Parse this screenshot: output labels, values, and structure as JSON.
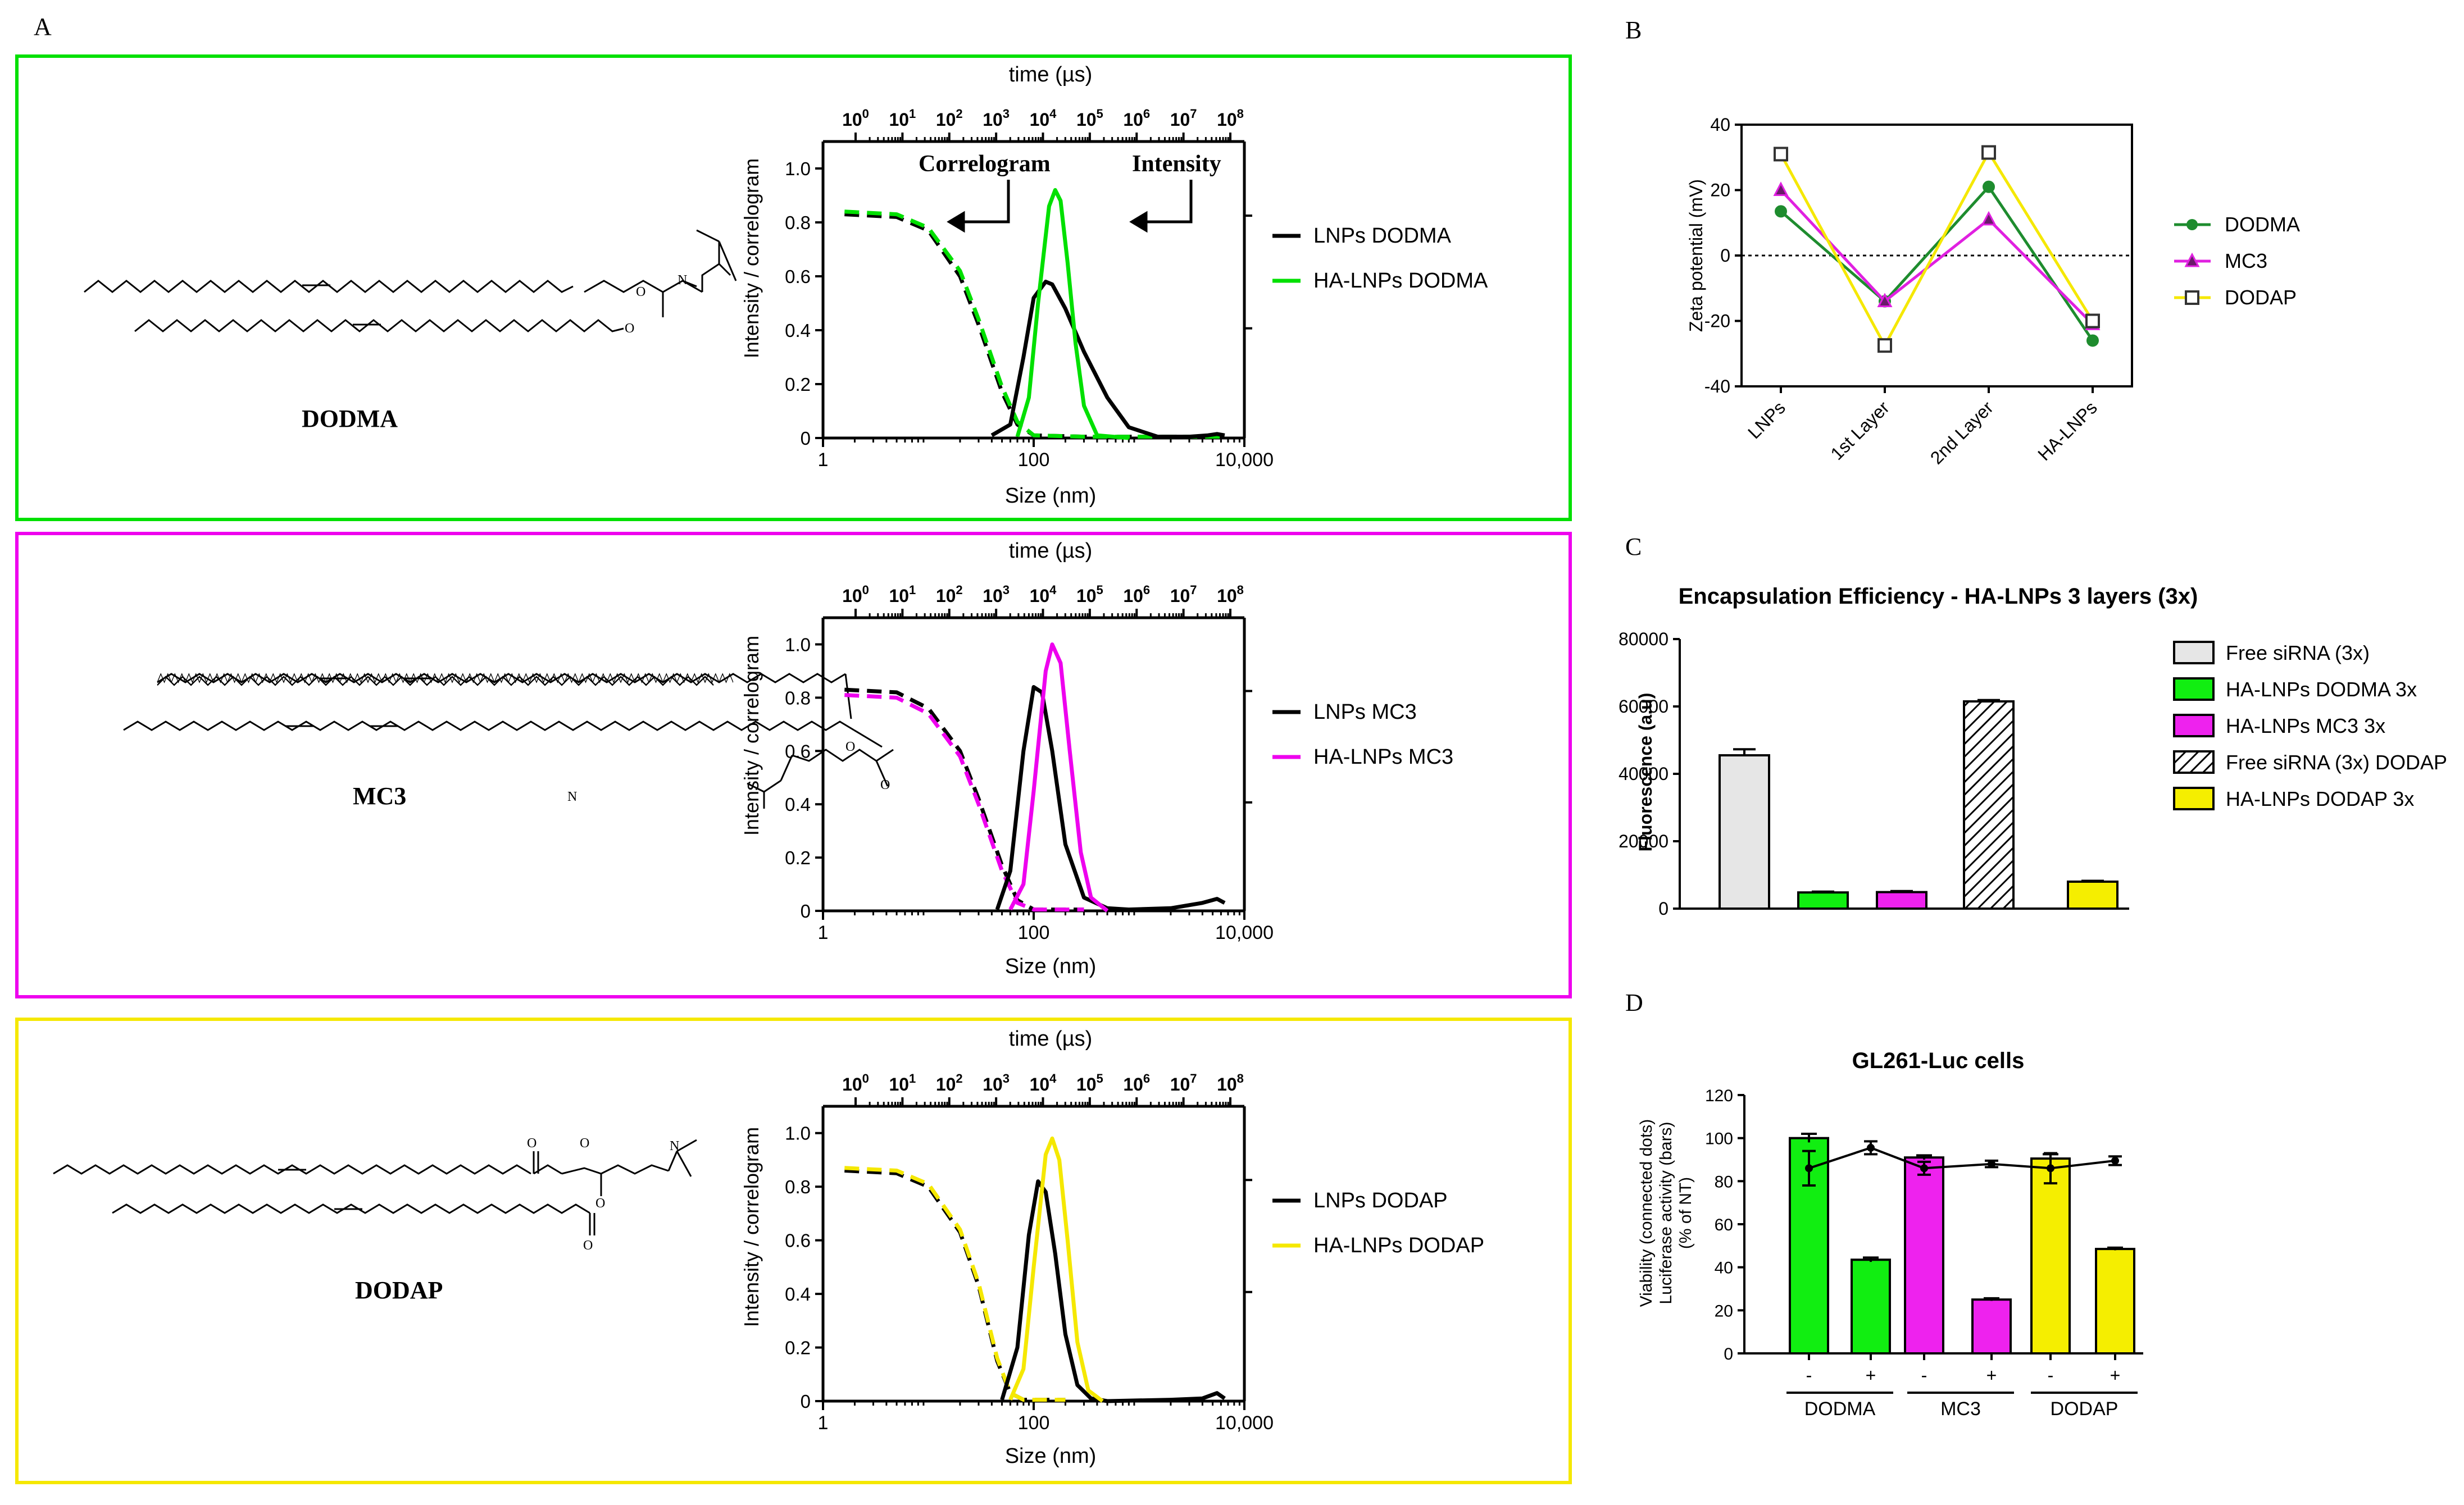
{
  "panel_letters": {
    "A": "A",
    "B": "B",
    "C": "C",
    "D": "D"
  },
  "chart_data": [
    {
      "id": "A1",
      "type": "line",
      "panel": "A",
      "title": "",
      "box_color": "#00e000",
      "structure_label": "DODMA",
      "x_axis_label": "Size (nm)",
      "x_ticks": [
        "1",
        "100",
        "10,000"
      ],
      "top_axis_label": "time (µs)",
      "top_tick_exponents": [
        "0",
        "1",
        "2",
        "3",
        "4",
        "5",
        "6",
        "7",
        "8"
      ],
      "y_axis_label": "Intensity / correlogram",
      "ylim": [
        0,
        1.1
      ],
      "y_ticks": [
        "0",
        "0.2",
        "0.4",
        "0.6",
        "0.8",
        "1.0"
      ],
      "annotations": {
        "correlogram": "Correlogram",
        "intensity": "Intensity"
      },
      "color_sample": "#00e000",
      "legend": [
        "LNPs DODMA",
        "HA-LNPs DODMA"
      ],
      "series": [
        {
          "name": "LNPs DODMA correlogram",
          "style": "dashed",
          "color": "#000000",
          "x": [
            1.6,
            5,
            10,
            20,
            30,
            50,
            70,
            100,
            300,
            1000,
            5000,
            6500
          ],
          "y": [
            0.83,
            0.82,
            0.77,
            0.6,
            0.42,
            0.17,
            0.05,
            0.01,
            0.005,
            0.005,
            0.005,
            0.005
          ]
        },
        {
          "name": "HA-LNPs DODMA correlogram",
          "style": "dashed",
          "color": "#00e000",
          "x": [
            1.6,
            5,
            10,
            20,
            30,
            50,
            70,
            100,
            300,
            1000,
            5000,
            6500
          ],
          "y": [
            0.84,
            0.83,
            0.78,
            0.62,
            0.44,
            0.19,
            0.06,
            0.01,
            0.005,
            0.005,
            0.005,
            0.005
          ]
        },
        {
          "name": "LNPs DODMA",
          "style": "solid",
          "color": "#000000",
          "x": [
            40,
            60,
            80,
            100,
            130,
            150,
            200,
            300,
            500,
            800,
            1500,
            3000,
            4500,
            5500,
            6500
          ],
          "y": [
            0.01,
            0.05,
            0.3,
            0.52,
            0.58,
            0.57,
            0.48,
            0.32,
            0.15,
            0.04,
            0.005,
            0.005,
            0.01,
            0.015,
            0.01
          ]
        },
        {
          "name": "HA-LNPs DODMA",
          "style": "solid",
          "color": "#00e000",
          "x": [
            70,
            90,
            110,
            140,
            160,
            180,
            210,
            250,
            300,
            400,
            800
          ],
          "y": [
            0.005,
            0.15,
            0.5,
            0.86,
            0.92,
            0.88,
            0.65,
            0.35,
            0.12,
            0.01,
            0.0
          ]
        }
      ]
    },
    {
      "id": "A2",
      "type": "line",
      "panel": "A",
      "title": "",
      "box_color": "#ee00ee",
      "structure_label": "MC3",
      "x_axis_label": "Size (nm)",
      "x_ticks": [
        "1",
        "100",
        "10,000"
      ],
      "top_axis_label": "time (µs)",
      "top_tick_exponents": [
        "0",
        "1",
        "2",
        "3",
        "4",
        "5",
        "6",
        "7",
        "8"
      ],
      "y_axis_label": "Intensity / correlogram",
      "ylim": [
        0,
        1.1
      ],
      "y_ticks": [
        "0",
        "0.2",
        "0.4",
        "0.6",
        "0.8",
        "1.0"
      ],
      "color_sample": "#ee00ee",
      "legend": [
        "LNPs MC3",
        "HA-LNPs MC3"
      ],
      "series": [
        {
          "name": "LNPs MC3 correlogram",
          "style": "dashed",
          "color": "#000000",
          "x": [
            1.6,
            5,
            10,
            20,
            30,
            50,
            70,
            100,
            300
          ],
          "y": [
            0.83,
            0.82,
            0.76,
            0.6,
            0.42,
            0.17,
            0.04,
            0.005,
            0.005
          ]
        },
        {
          "name": "HA-LNPs MC3 correlogram",
          "style": "dashed",
          "color": "#ee00ee",
          "x": [
            1.6,
            5,
            10,
            20,
            30,
            50,
            70,
            100,
            300
          ],
          "y": [
            0.81,
            0.8,
            0.74,
            0.58,
            0.4,
            0.15,
            0.03,
            0.005,
            0.005
          ]
        },
        {
          "name": "LNPs MC3",
          "style": "solid",
          "color": "#000000",
          "x": [
            45,
            60,
            80,
            100,
            120,
            150,
            200,
            300,
            500,
            800,
            2000,
            4000,
            5500,
            6500
          ],
          "y": [
            0.005,
            0.15,
            0.6,
            0.84,
            0.82,
            0.6,
            0.25,
            0.05,
            0.01,
            0.005,
            0.01,
            0.03,
            0.045,
            0.03
          ]
        },
        {
          "name": "HA-LNPs MC3",
          "style": "solid",
          "color": "#ee00ee",
          "x": [
            60,
            80,
            100,
            130,
            150,
            180,
            220,
            280,
            350,
            500
          ],
          "y": [
            0.005,
            0.1,
            0.45,
            0.9,
            1.0,
            0.93,
            0.6,
            0.22,
            0.05,
            0.0
          ]
        }
      ]
    },
    {
      "id": "A3",
      "type": "line",
      "panel": "A",
      "title": "",
      "box_color": "#f5e800",
      "structure_label": "DODAP",
      "x_axis_label": "Size (nm)",
      "x_ticks": [
        "1",
        "100",
        "10,000"
      ],
      "top_axis_label": "time (µs)",
      "top_tick_exponents": [
        "0",
        "1",
        "2",
        "3",
        "4",
        "5",
        "6",
        "7",
        "8"
      ],
      "y_axis_label": "Intensity / correlogram",
      "ylim": [
        0,
        1.1
      ],
      "y_ticks": [
        "0",
        "0.2",
        "0.4",
        "0.6",
        "0.8",
        "1.0"
      ],
      "color_sample": "#f5e800",
      "legend": [
        "LNPs DODAP",
        "HA-LNPs DODAP"
      ],
      "series": [
        {
          "name": "LNPs DODAP correlogram",
          "style": "dashed",
          "color": "#000000",
          "x": [
            1.6,
            5,
            10,
            20,
            30,
            45,
            60,
            80,
            200
          ],
          "y": [
            0.86,
            0.85,
            0.8,
            0.63,
            0.43,
            0.15,
            0.03,
            0.005,
            0.005
          ]
        },
        {
          "name": "HA-LNPs DODAP correlogram",
          "style": "dashed",
          "color": "#f5e800",
          "x": [
            1.6,
            5,
            10,
            20,
            30,
            45,
            60,
            80,
            200
          ],
          "y": [
            0.87,
            0.86,
            0.81,
            0.64,
            0.44,
            0.16,
            0.03,
            0.005,
            0.005
          ]
        },
        {
          "name": "LNPs DODAP",
          "style": "solid",
          "color": "#000000",
          "x": [
            50,
            70,
            90,
            110,
            130,
            160,
            200,
            260,
            350,
            500,
            2000,
            4000,
            5500,
            6500
          ],
          "y": [
            0.005,
            0.2,
            0.62,
            0.82,
            0.78,
            0.55,
            0.25,
            0.06,
            0.01,
            0.0,
            0.005,
            0.01,
            0.03,
            0.01
          ]
        },
        {
          "name": "HA-LNPs DODAP",
          "style": "solid",
          "color": "#f5e800",
          "x": [
            60,
            80,
            100,
            130,
            150,
            175,
            210,
            260,
            330,
            450
          ],
          "y": [
            0.005,
            0.12,
            0.5,
            0.92,
            0.98,
            0.9,
            0.6,
            0.22,
            0.04,
            0.0
          ]
        }
      ]
    },
    {
      "id": "B",
      "type": "line",
      "panel": "B",
      "title": "",
      "categories": [
        "LNPs",
        "1st Layer",
        "2nd Layer",
        "HA-LNPs"
      ],
      "ylabel": "Zeta potential (mV)",
      "ylim": [
        -40,
        40
      ],
      "y_ticks": [
        "-40",
        "-20",
        "0",
        "20",
        "40"
      ],
      "reference_line": 0,
      "series": [
        {
          "name": "DODMA",
          "color": "#1e8c2e",
          "marker": "circle",
          "values": [
            13.5,
            -14,
            21,
            -26
          ]
        },
        {
          "name": "MC3",
          "color": "#e020e0",
          "marker": "triangle",
          "values": [
            20,
            -14,
            11,
            -21
          ]
        },
        {
          "name": "DODAP",
          "color": "#f5e800",
          "marker": "square",
          "values": [
            31,
            -27.5,
            31.5,
            -20
          ]
        }
      ]
    },
    {
      "id": "C",
      "type": "bar",
      "panel": "C",
      "title": "Encapsulation Efficiency - HA-LNPs 3 layers (3x)",
      "ylabel": "Fluorescence (a.u)",
      "ylim": [
        0,
        80000
      ],
      "y_ticks": [
        "0",
        "20000",
        "40000",
        "60000",
        "80000"
      ],
      "series": [
        {
          "name": "Free siRNA (3x)",
          "color": "#e6e6e6",
          "pattern": "none",
          "value": 45500,
          "error": 1800
        },
        {
          "name": "HA-LNPs DODMA 3x",
          "color": "#11ee11",
          "pattern": "none",
          "value": 4800,
          "error": 250
        },
        {
          "name": "HA-LNPs MC3 3x",
          "color": "#ee22ee",
          "pattern": "none",
          "value": 4900,
          "error": 300
        },
        {
          "name": "Free siRNA (3x) DODAP",
          "color": "#ffffff",
          "pattern": "hatch",
          "value": 61500,
          "error": 400
        },
        {
          "name": "HA-LNPs DODAP 3x",
          "color": "#f5ee00",
          "pattern": "none",
          "value": 8000,
          "error": 250
        }
      ]
    },
    {
      "id": "D",
      "type": "bar",
      "panel": "D",
      "title": "GL261-Luc cells",
      "ylabel_lines": [
        "Viability (connected dots)",
        "Luciferase activity (bars)",
        "(% of NT)"
      ],
      "ylim": [
        0,
        120
      ],
      "y_ticks": [
        "0",
        "20",
        "40",
        "60",
        "80",
        "100",
        "120"
      ],
      "sign_labels": [
        "-",
        "+",
        "-",
        "+",
        "-",
        "+"
      ],
      "groups": [
        "DODMA",
        "MC3",
        "DODAP"
      ],
      "bar_colors": [
        "#11ee11",
        "#11ee11",
        "#ee22ee",
        "#ee22ee",
        "#f5ee00",
        "#f5ee00"
      ],
      "bars": [
        {
          "value": 100,
          "error": 2
        },
        {
          "value": 43.5,
          "error": 1
        },
        {
          "value": 91,
          "error": 1
        },
        {
          "value": 25,
          "error": 0.6
        },
        {
          "value": 90.5,
          "error": 2
        },
        {
          "value": 48.5,
          "error": 0.6
        }
      ],
      "viability": [
        {
          "value": 86,
          "error": 8
        },
        {
          "value": 95.5,
          "error": 3
        },
        {
          "value": 86,
          "error": 3
        },
        {
          "value": 88,
          "error": 1.5
        },
        {
          "value": 86,
          "error": 7
        },
        {
          "value": 89.5,
          "error": 2
        }
      ]
    }
  ]
}
